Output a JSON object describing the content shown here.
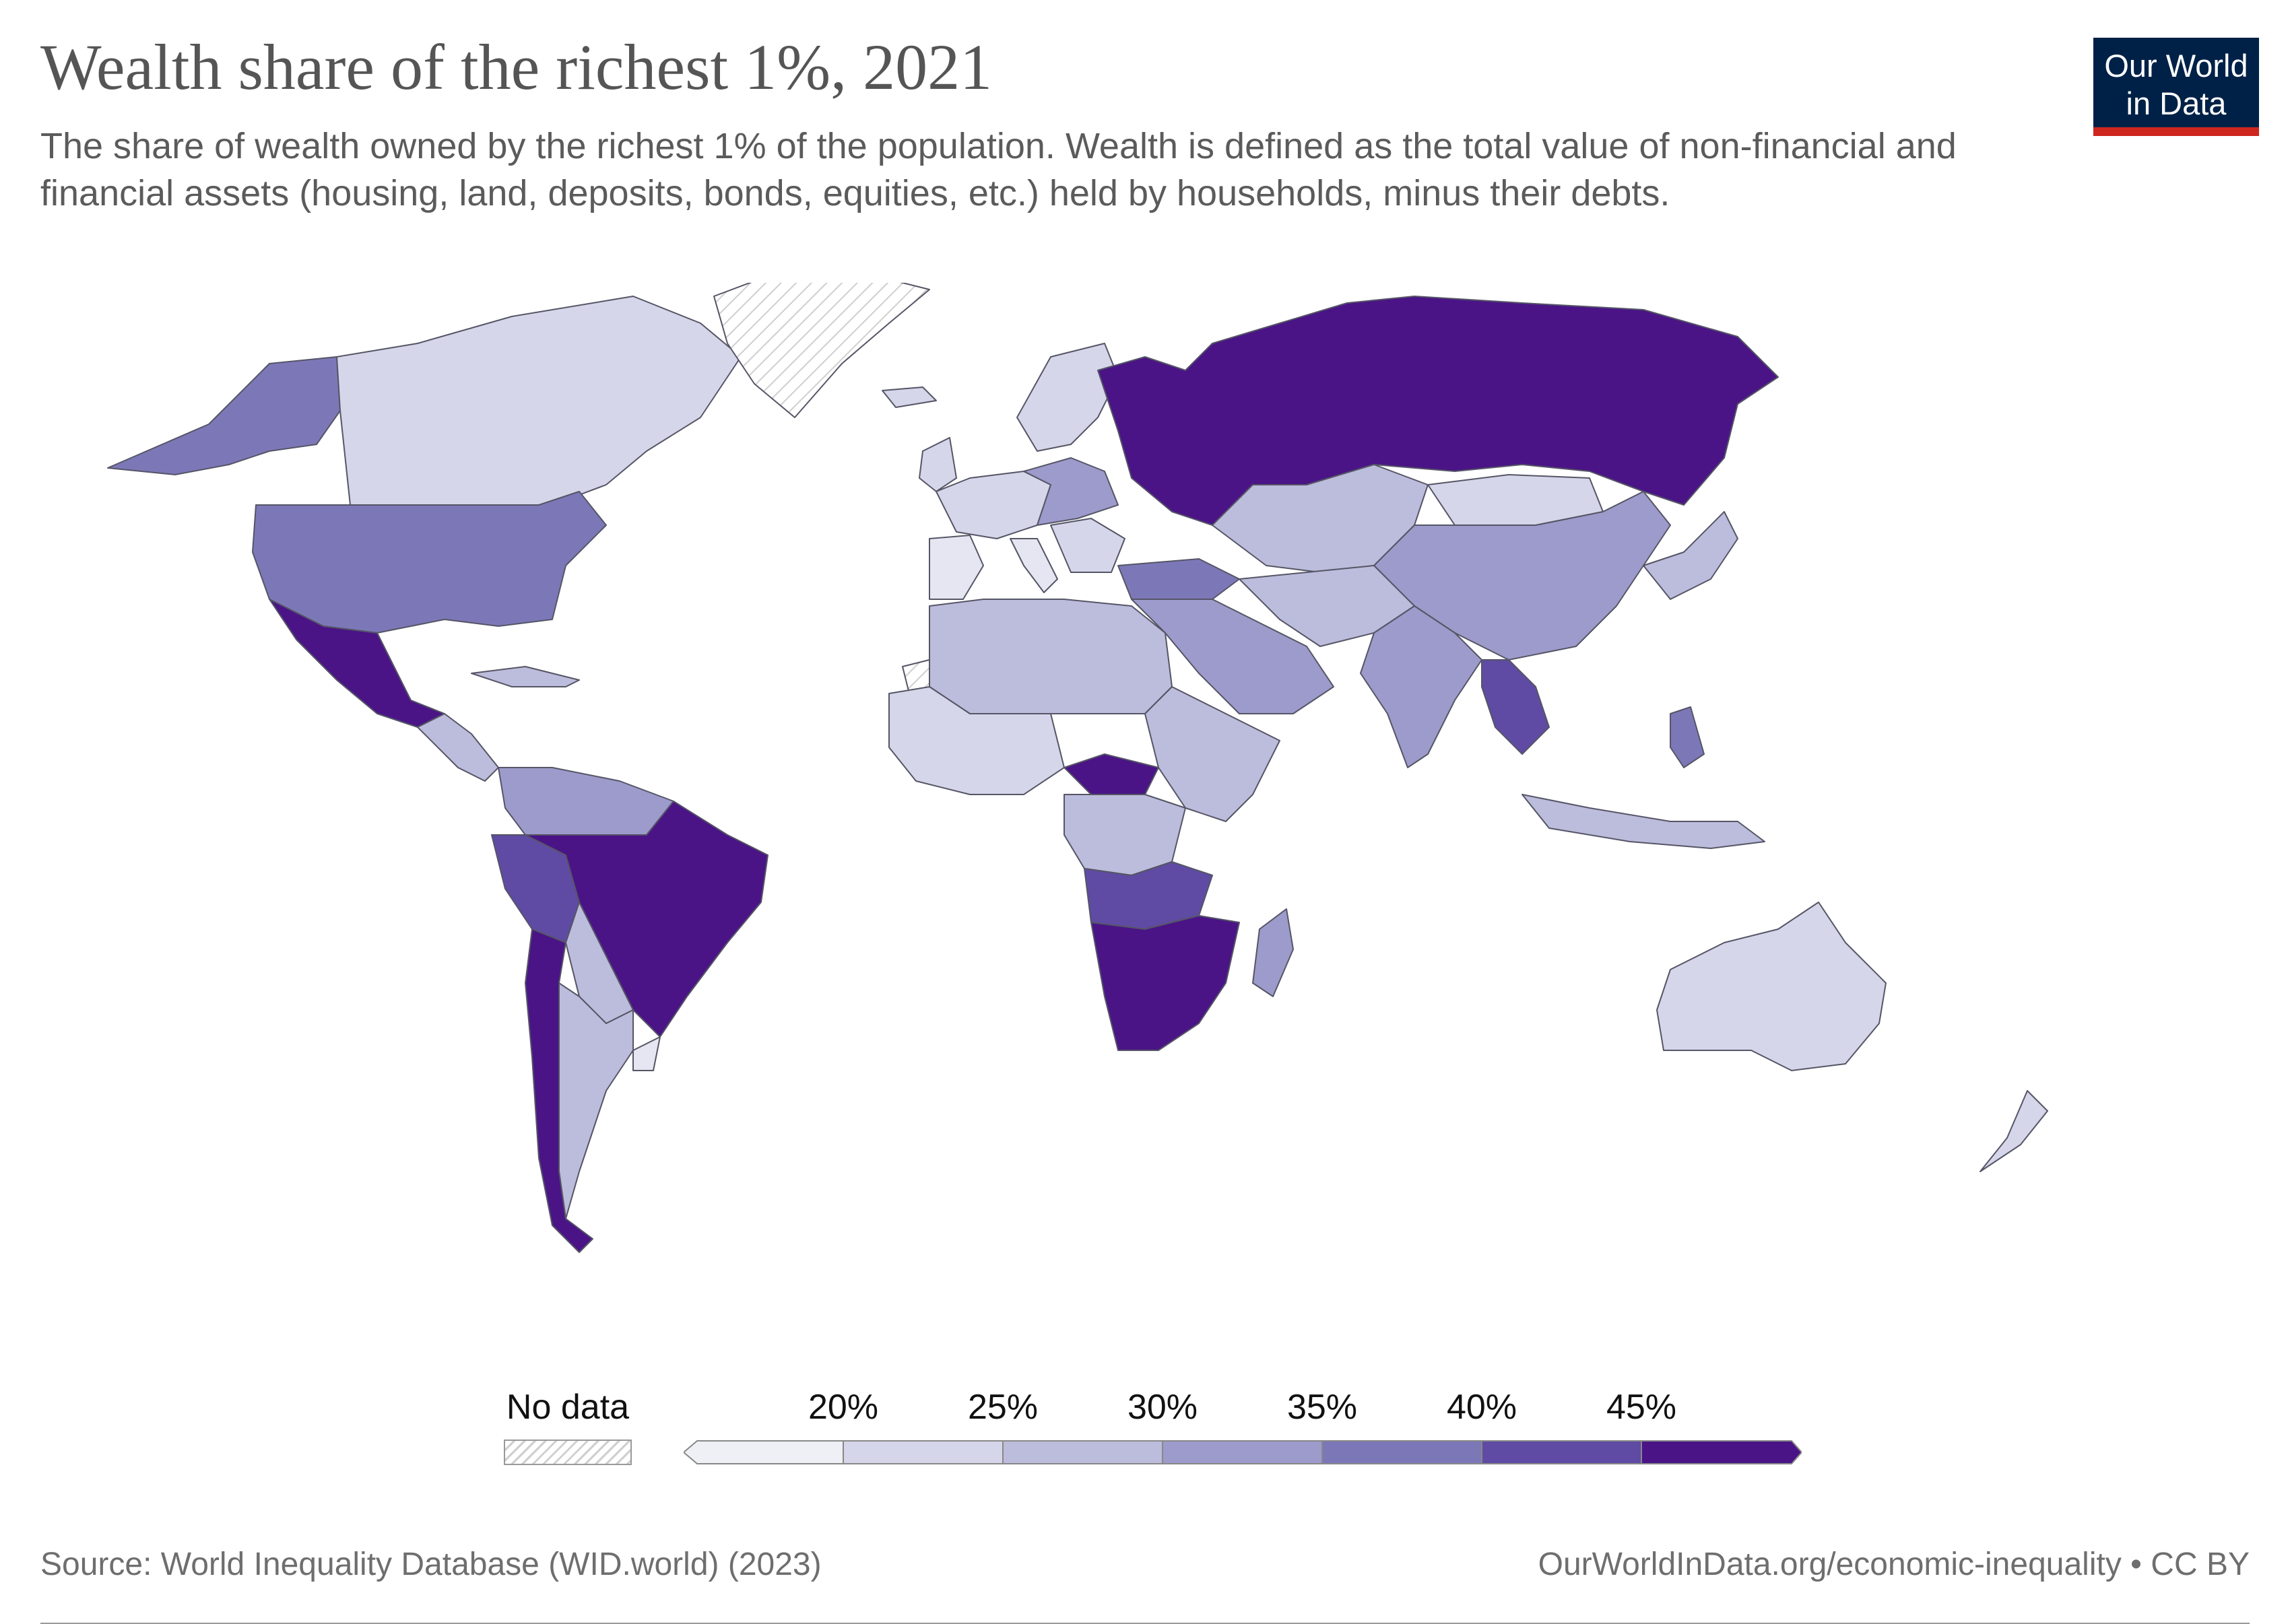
{
  "header": {
    "title": "Wealth share of the richest 1%, 2021",
    "subtitle": "The share of wealth owned by the richest 1% of the population. Wealth is defined as the total value of non-financial and financial assets (housing, land, deposits, bonds, equities, etc.) held by households, minus their debts."
  },
  "logo": {
    "line1": "Our World",
    "line2": "in Data"
  },
  "legend": {
    "no_data_label": "No data",
    "bins": [
      {
        "label": "",
        "color": "#efeff6"
      },
      {
        "label": "20%",
        "color": "#d6d6ea"
      },
      {
        "label": "25%",
        "color": "#bcbcdc"
      },
      {
        "label": "30%",
        "color": "#9d9bcb"
      },
      {
        "label": "35%",
        "color": "#7c78b8"
      },
      {
        "label": "40%",
        "color": "#5f4ba3"
      },
      {
        "label": "45%",
        "color": "#4a1486"
      }
    ],
    "tick_labels": [
      "20%",
      "25%",
      "30%",
      "35%",
      "40%",
      "45%"
    ],
    "no_data_pattern_color": "#cfcfcf"
  },
  "map_colors": {
    "c0": "#e6e6f2",
    "c1": "#d6d6ea",
    "c2": "#bcbcdc",
    "c3": "#9d9bcb",
    "c4": "#7c78b8",
    "c5": "#5f4ba3",
    "c6": "#4a1486",
    "no_data": "#ffffff",
    "border": "#555566"
  },
  "footer": {
    "source": "Source: World Inequality Database (WID.world) (2023)",
    "credit": "OurWorldInData.org/economic-inequality • CC BY"
  }
}
